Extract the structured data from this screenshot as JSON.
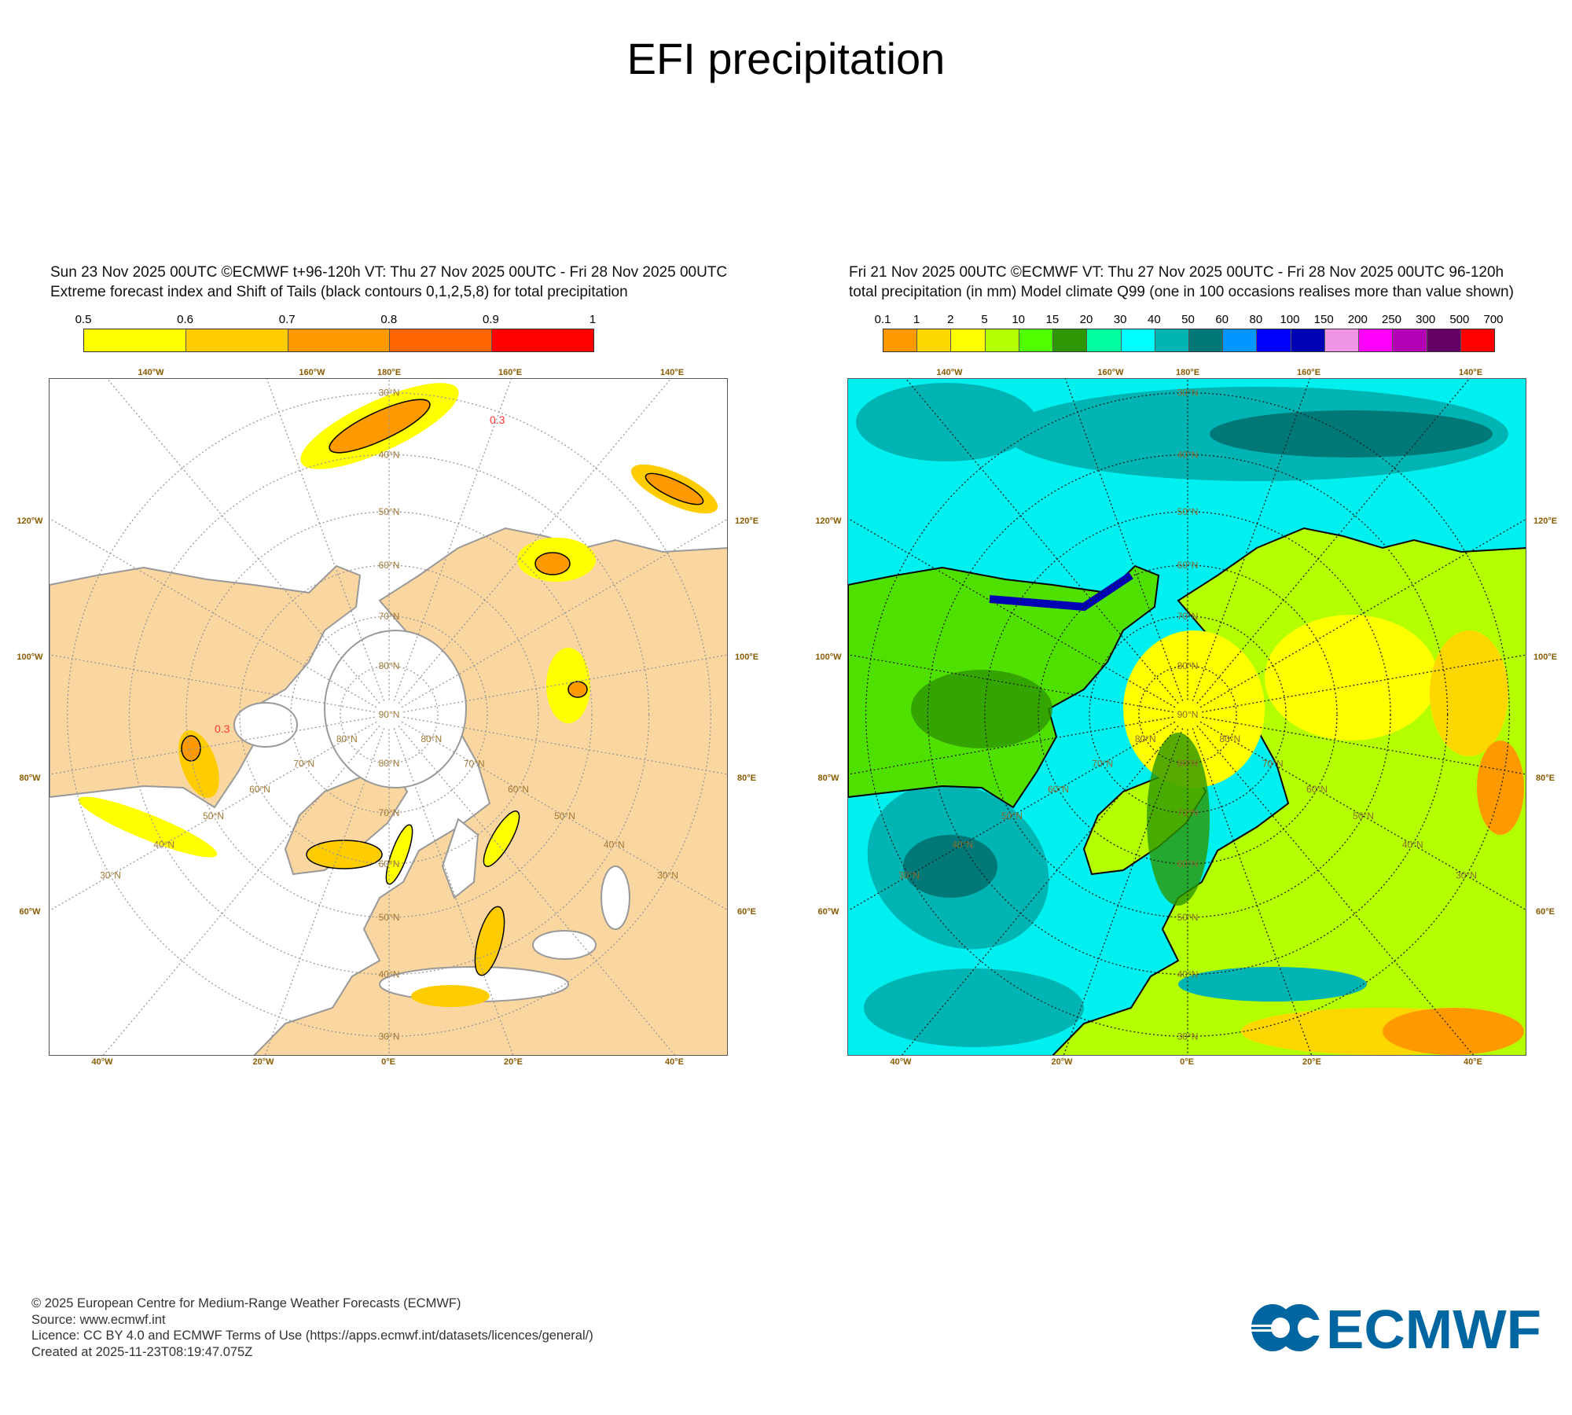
{
  "title": "EFI precipitation",
  "left_panel": {
    "header_line1": "Sun 23 Nov 2025 00UTC ©ECMWF t+96-120h  VT: Thu 27 Nov 2025 00UTC - Fri 28 Nov 2025 00UTC",
    "header_line2": "Extreme forecast index and Shift of Tails (black contours 0,1,2,5,8) for total precipitation",
    "colorbar": {
      "labels": [
        "0.5",
        "0.6",
        "0.7",
        "0.8",
        "0.9",
        "1"
      ],
      "colors": [
        "#ffff00",
        "#ffcc00",
        "#ff9900",
        "#ff6600",
        "#ff0000"
      ]
    },
    "contour_label": "0.3"
  },
  "right_panel": {
    "header_line1": "Fri 21 Nov 2025 00UTC ©ECMWF VT: Thu 27 Nov 2025 00UTC - Fri 28 Nov 2025 00UTC   96-120h",
    "header_line2": "total precipitation (in mm)  Model climate Q99 (one in 100 occasions realises more than value shown)",
    "colorbar": {
      "labels": [
        "0.1",
        "1",
        "2",
        "5",
        "10",
        "15",
        "20",
        "30",
        "40",
        "50",
        "60",
        "80",
        "100",
        "150",
        "200",
        "250",
        "300",
        "500",
        "700"
      ],
      "colors": [
        "#ff9900",
        "#ffd700",
        "#ffff00",
        "#b4ff00",
        "#50ff00",
        "#2d9600",
        "#00ffa0",
        "#00ffff",
        "#00b4b4",
        "#007878",
        "#0096ff",
        "#0000ff",
        "#0000b4",
        "#f096e6",
        "#ff00ff",
        "#b400b4",
        "#640064",
        "#ff0000"
      ]
    }
  },
  "map_axes": {
    "top": [
      "140°W",
      "160°W",
      "180°E",
      "160°E",
      "140°E"
    ],
    "left": [
      "120°W",
      "100°W",
      "80°W",
      "60°W"
    ],
    "right": [
      "120°E",
      "100°E",
      "80°E",
      "60°E"
    ],
    "bottom": [
      "40°W",
      "20°W",
      "0°E",
      "20°E",
      "40°E"
    ],
    "lat_labels": [
      "90°N",
      "80°N",
      "70°N",
      "60°N",
      "50°N",
      "40°N",
      "30°N"
    ]
  },
  "footer": {
    "line1": "© 2025 European Centre for Medium-Range Weather Forecasts (ECMWF)",
    "line2": "Source: www.ecmwf.int",
    "line3": "Licence: CC BY 4.0 and ECMWF Terms of Use (https://apps.ecmwf.int/datasets/licences/general/)",
    "line4": "Created at 2025-11-23T08:19:47.075Z"
  },
  "logo": {
    "text": "ECMWF",
    "color": "#0066a1"
  }
}
